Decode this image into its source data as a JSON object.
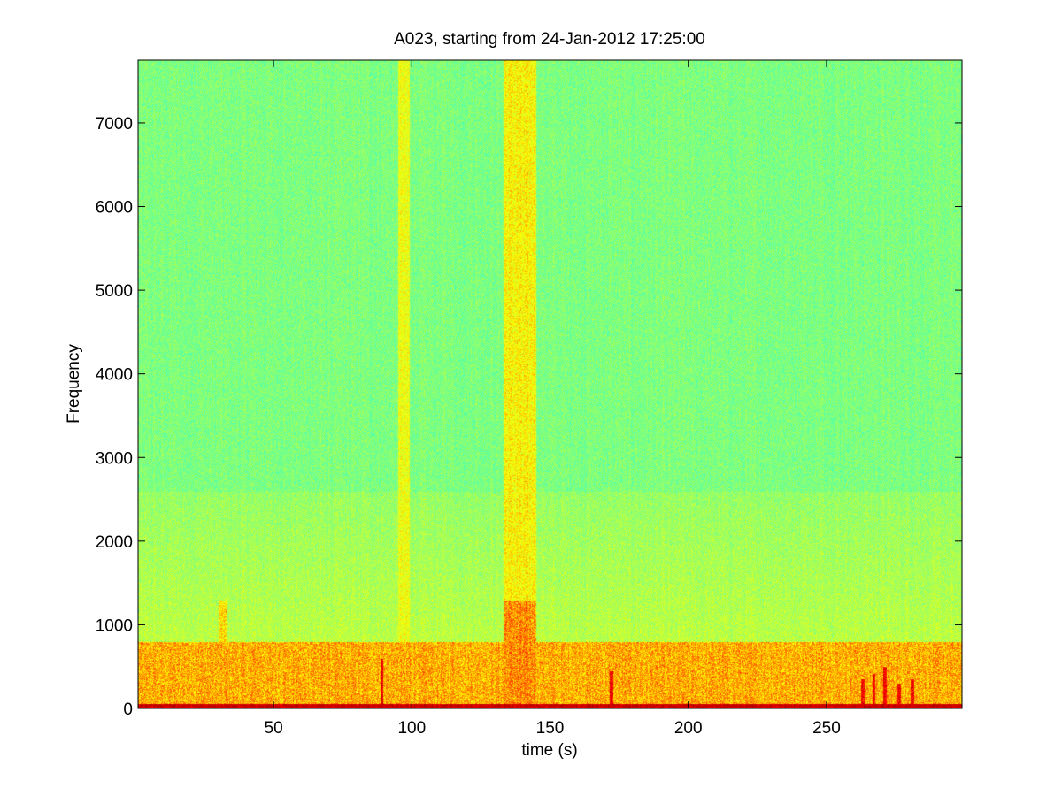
{
  "chart_data": {
    "type": "heatmap",
    "title": "A023, starting from 24-Jan-2012 17:25:00",
    "xlabel": "time (s)",
    "ylabel": "Frequency",
    "xlim": [
      1,
      299
    ],
    "ylim": [
      0,
      7750
    ],
    "xticks": [
      50,
      100,
      150,
      200,
      250
    ],
    "yticks": [
      0,
      1000,
      2000,
      3000,
      4000,
      5000,
      6000,
      7000
    ],
    "grid": false,
    "colormap": [
      "#00007f",
      "#0000ff",
      "#00ffff",
      "#7fff7f",
      "#ffff00",
      "#ff0000",
      "#7f0000"
    ],
    "background_level": 0.5,
    "low_frequency_band": {
      "freq_max": 800,
      "level": 0.72
    },
    "mid_frequency_band": {
      "freq_min": 800,
      "freq_max": 2600,
      "level": 0.58
    },
    "bottom_band": {
      "freq_max": 60,
      "level": 0.9
    },
    "broadband_events": [
      {
        "t_start": 95,
        "t_end": 99,
        "freq_max": 7750,
        "level": 0.64
      },
      {
        "t_start": 133,
        "t_end": 145,
        "freq_max": 7750,
        "level": 0.66
      },
      {
        "t_start": 133,
        "t_end": 145,
        "freq_max": 1300,
        "level": 0.74
      },
      {
        "t_start": 30,
        "t_end": 33,
        "freq_max": 1300,
        "level": 0.68
      }
    ],
    "transients": [
      {
        "t": 89,
        "freq_max": 600
      },
      {
        "t": 172,
        "freq_max": 450
      },
      {
        "t": 263,
        "freq_max": 350
      },
      {
        "t": 267,
        "freq_max": 420
      },
      {
        "t": 271,
        "freq_max": 500
      },
      {
        "t": 276,
        "freq_max": 300
      },
      {
        "t": 281,
        "freq_max": 350
      }
    ]
  }
}
